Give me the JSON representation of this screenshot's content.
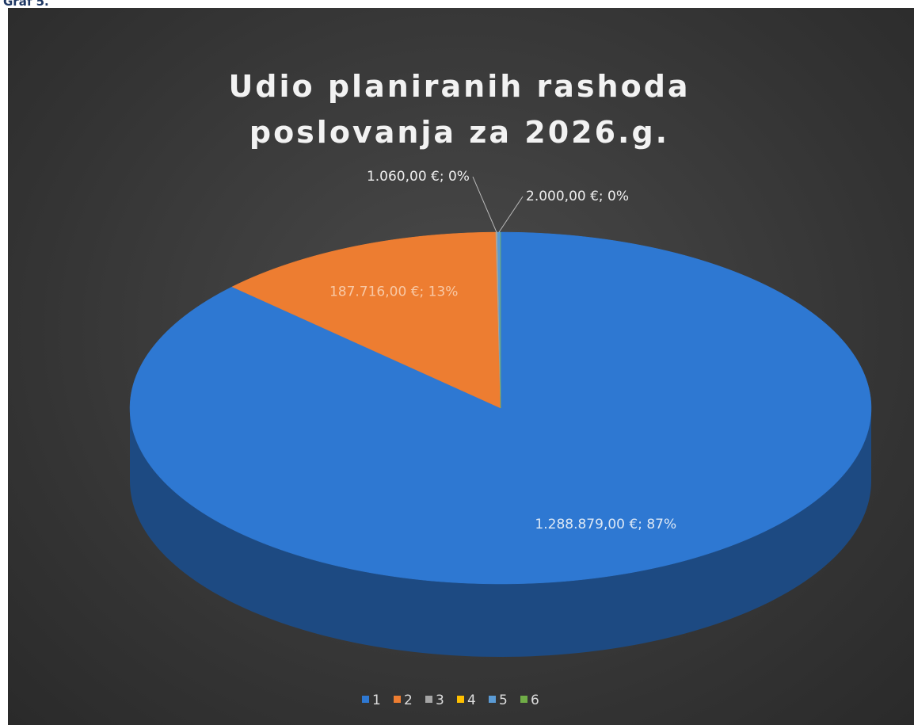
{
  "caption": "Graf 5.",
  "chart_data": {
    "type": "pie",
    "title": "Udio planiranih rashoda poslovanja za 2026.g.",
    "categories": [
      "1",
      "2",
      "3",
      "4",
      "5",
      "6"
    ],
    "values": [
      1288879,
      187716,
      1060,
      0,
      2000,
      0
    ],
    "value_labels": [
      "1.288.879,00 €; 87%",
      "187.716,00 €; 13%",
      "1.060,00 €; 0%",
      null,
      "2.000,00 €; 0%",
      null
    ],
    "colors": [
      "#2e78d2",
      "#ed7d31",
      "#a5a5a5",
      "#ffc000",
      "#5b9bd5",
      "#70ad47"
    ],
    "legend": "bottom"
  }
}
